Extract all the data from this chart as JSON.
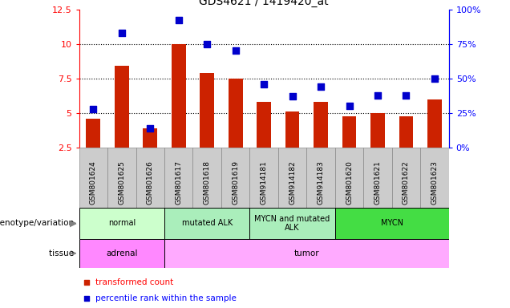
{
  "title": "GDS4621 / 1419420_at",
  "samples": [
    "GSM801624",
    "GSM801625",
    "GSM801626",
    "GSM801617",
    "GSM801618",
    "GSM801619",
    "GSM914181",
    "GSM914182",
    "GSM914183",
    "GSM801620",
    "GSM801621",
    "GSM801622",
    "GSM801623"
  ],
  "red_values": [
    4.6,
    8.4,
    3.9,
    10.0,
    7.9,
    7.5,
    5.8,
    5.1,
    5.8,
    4.75,
    5.0,
    4.75,
    6.0
  ],
  "blue_values_pct": [
    28,
    83,
    14,
    92,
    75,
    70,
    46,
    37,
    44,
    30,
    38,
    38,
    50
  ],
  "ylim_left": [
    2.5,
    12.5
  ],
  "ylim_right": [
    0,
    100
  ],
  "yticks_left": [
    2.5,
    5.0,
    7.5,
    10.0,
    12.5
  ],
  "ytick_labels_left": [
    "2.5",
    "5",
    "7.5",
    "10",
    "12.5"
  ],
  "ytick_labels_right": [
    "0%",
    "25%",
    "50%",
    "75%",
    "100%"
  ],
  "hlines": [
    5.0,
    7.5,
    10.0
  ],
  "genotype_groups": [
    {
      "label": "normal",
      "start": 0,
      "end": 3,
      "color": "#ccffcc"
    },
    {
      "label": "mutated ALK",
      "start": 3,
      "end": 6,
      "color": "#aaeebb"
    },
    {
      "label": "MYCN and mutated\nALK",
      "start": 6,
      "end": 9,
      "color": "#aaeebb"
    },
    {
      "label": "MYCN",
      "start": 9,
      "end": 13,
      "color": "#44dd44"
    }
  ],
  "tissue_groups": [
    {
      "label": "adrenal",
      "start": 0,
      "end": 3,
      "color": "#ff88ff"
    },
    {
      "label": "tumor",
      "start": 3,
      "end": 13,
      "color": "#ffaaff"
    }
  ],
  "bar_color": "#cc2200",
  "dot_color": "#0000cc",
  "bar_width": 0.5,
  "dot_size": 30,
  "legend_red": "transformed count",
  "legend_blue": "percentile rank within the sample",
  "genotype_label": "genotype/variation",
  "tissue_label": "tissue",
  "n_samples": 13
}
